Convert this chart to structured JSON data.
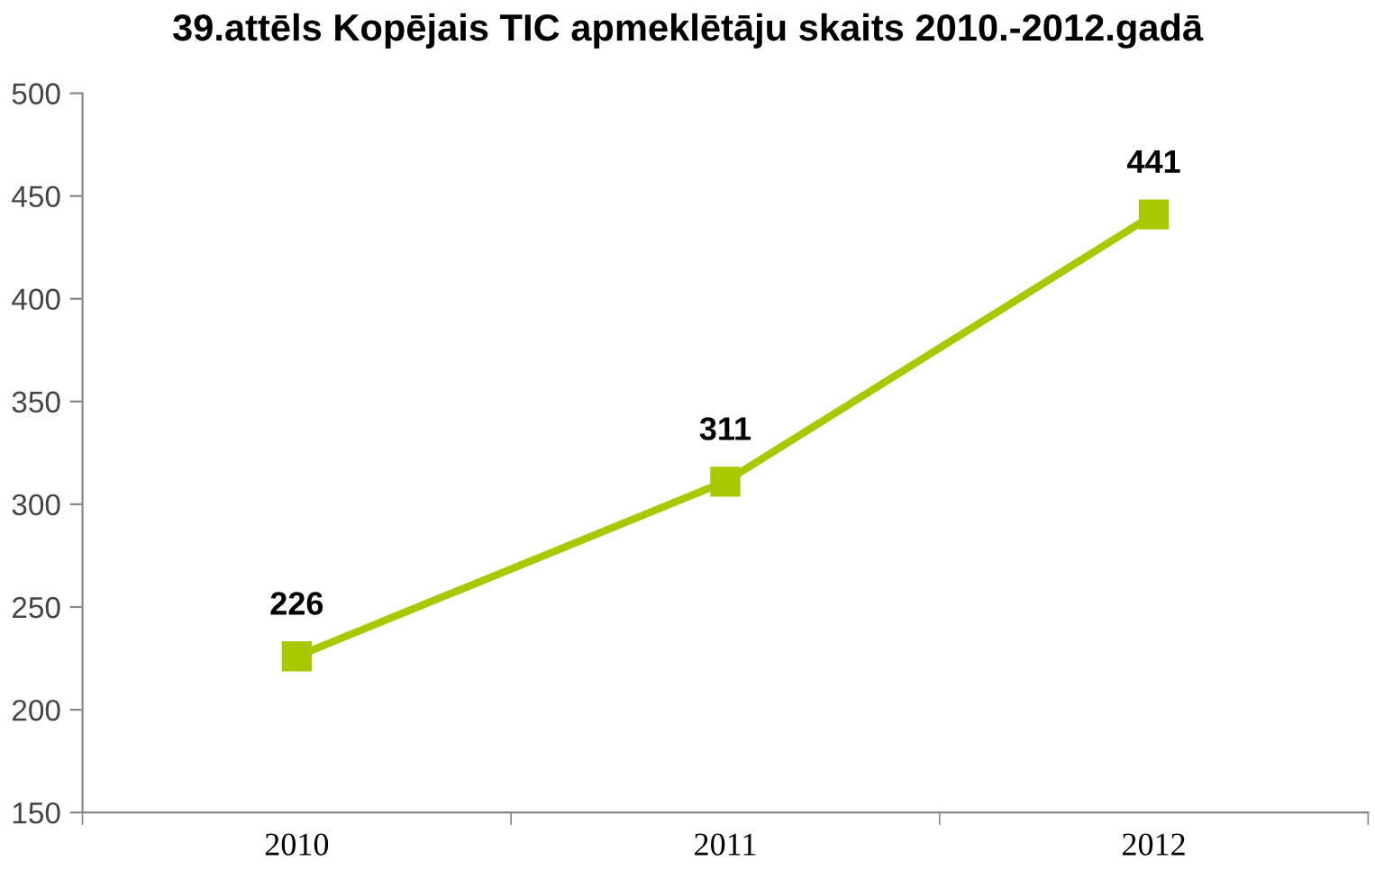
{
  "chart_data": {
    "type": "line",
    "title": "39.attēls Kopējais TIC apmeklētāju skaits 2010.-2012.gadā",
    "categories": [
      "2010",
      "2011",
      "2012"
    ],
    "series": [
      {
        "color": "#a8c800",
        "values": [
          226,
          311,
          441
        ]
      }
    ],
    "ylim": [
      150,
      500
    ],
    "yticks": [
      150,
      200,
      250,
      300,
      350,
      400,
      450,
      500
    ],
    "grid": false,
    "legend": false,
    "marker": "square",
    "line_style": "solid",
    "data_labels": true
  }
}
